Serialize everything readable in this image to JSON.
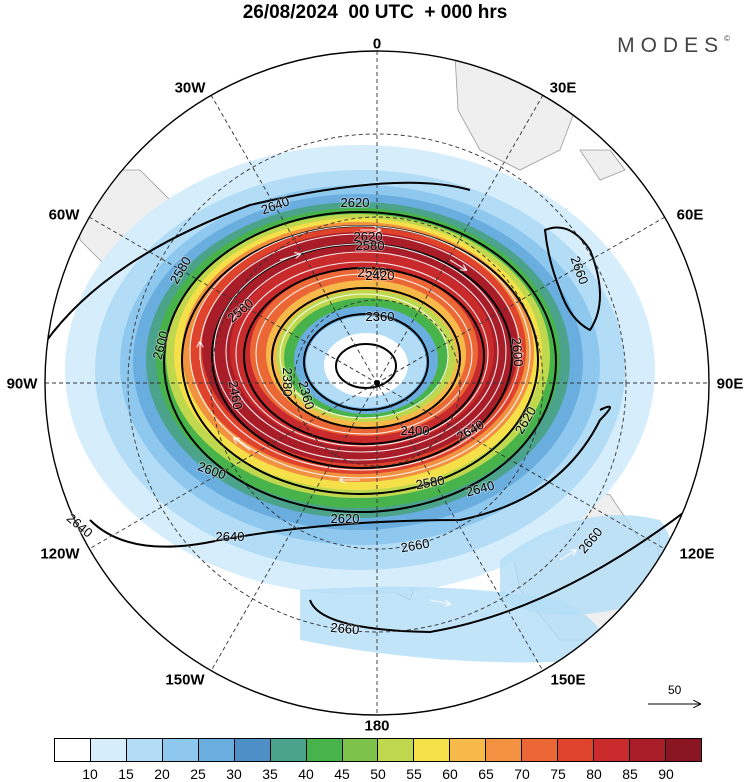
{
  "title": "26/08/2024  00 UTC  + 000 hrs",
  "brand": "MODES",
  "brand_mark": "©",
  "longitude_labels": [
    "0",
    "30E",
    "60E",
    "90E",
    "120E",
    "150E",
    "180",
    "150W",
    "120W",
    "90W",
    "60W",
    "30W"
  ],
  "contour_labels": [
    "2640",
    "2620",
    "2620",
    "2580",
    "2540",
    "2420",
    "2400",
    "2360",
    "2380",
    "2360",
    "2460",
    "2600",
    "2580",
    "2560",
    "2600",
    "2580",
    "2620",
    "2640",
    "2640",
    "2600",
    "2620",
    "2640",
    "2660",
    "2660",
    "2660",
    "2660",
    "2640"
  ],
  "reference_vector_label": "50",
  "colorbar": {
    "labels": [
      "10",
      "15",
      "20",
      "25",
      "30",
      "35",
      "40",
      "45",
      "50",
      "55",
      "60",
      "65",
      "70",
      "75",
      "80",
      "85",
      "90"
    ],
    "colors": [
      "#ffffff",
      "#d6eefb",
      "#b3ddf7",
      "#8fc8ef",
      "#6aaedf",
      "#4d8fc6",
      "#4aa38a",
      "#47b34a",
      "#7dc24b",
      "#bfd84d",
      "#f6e04a",
      "#f7b94a",
      "#f2913f",
      "#ec6736",
      "#e0432c",
      "#c92a2c",
      "#a81d28",
      "#8a1622"
    ]
  }
}
